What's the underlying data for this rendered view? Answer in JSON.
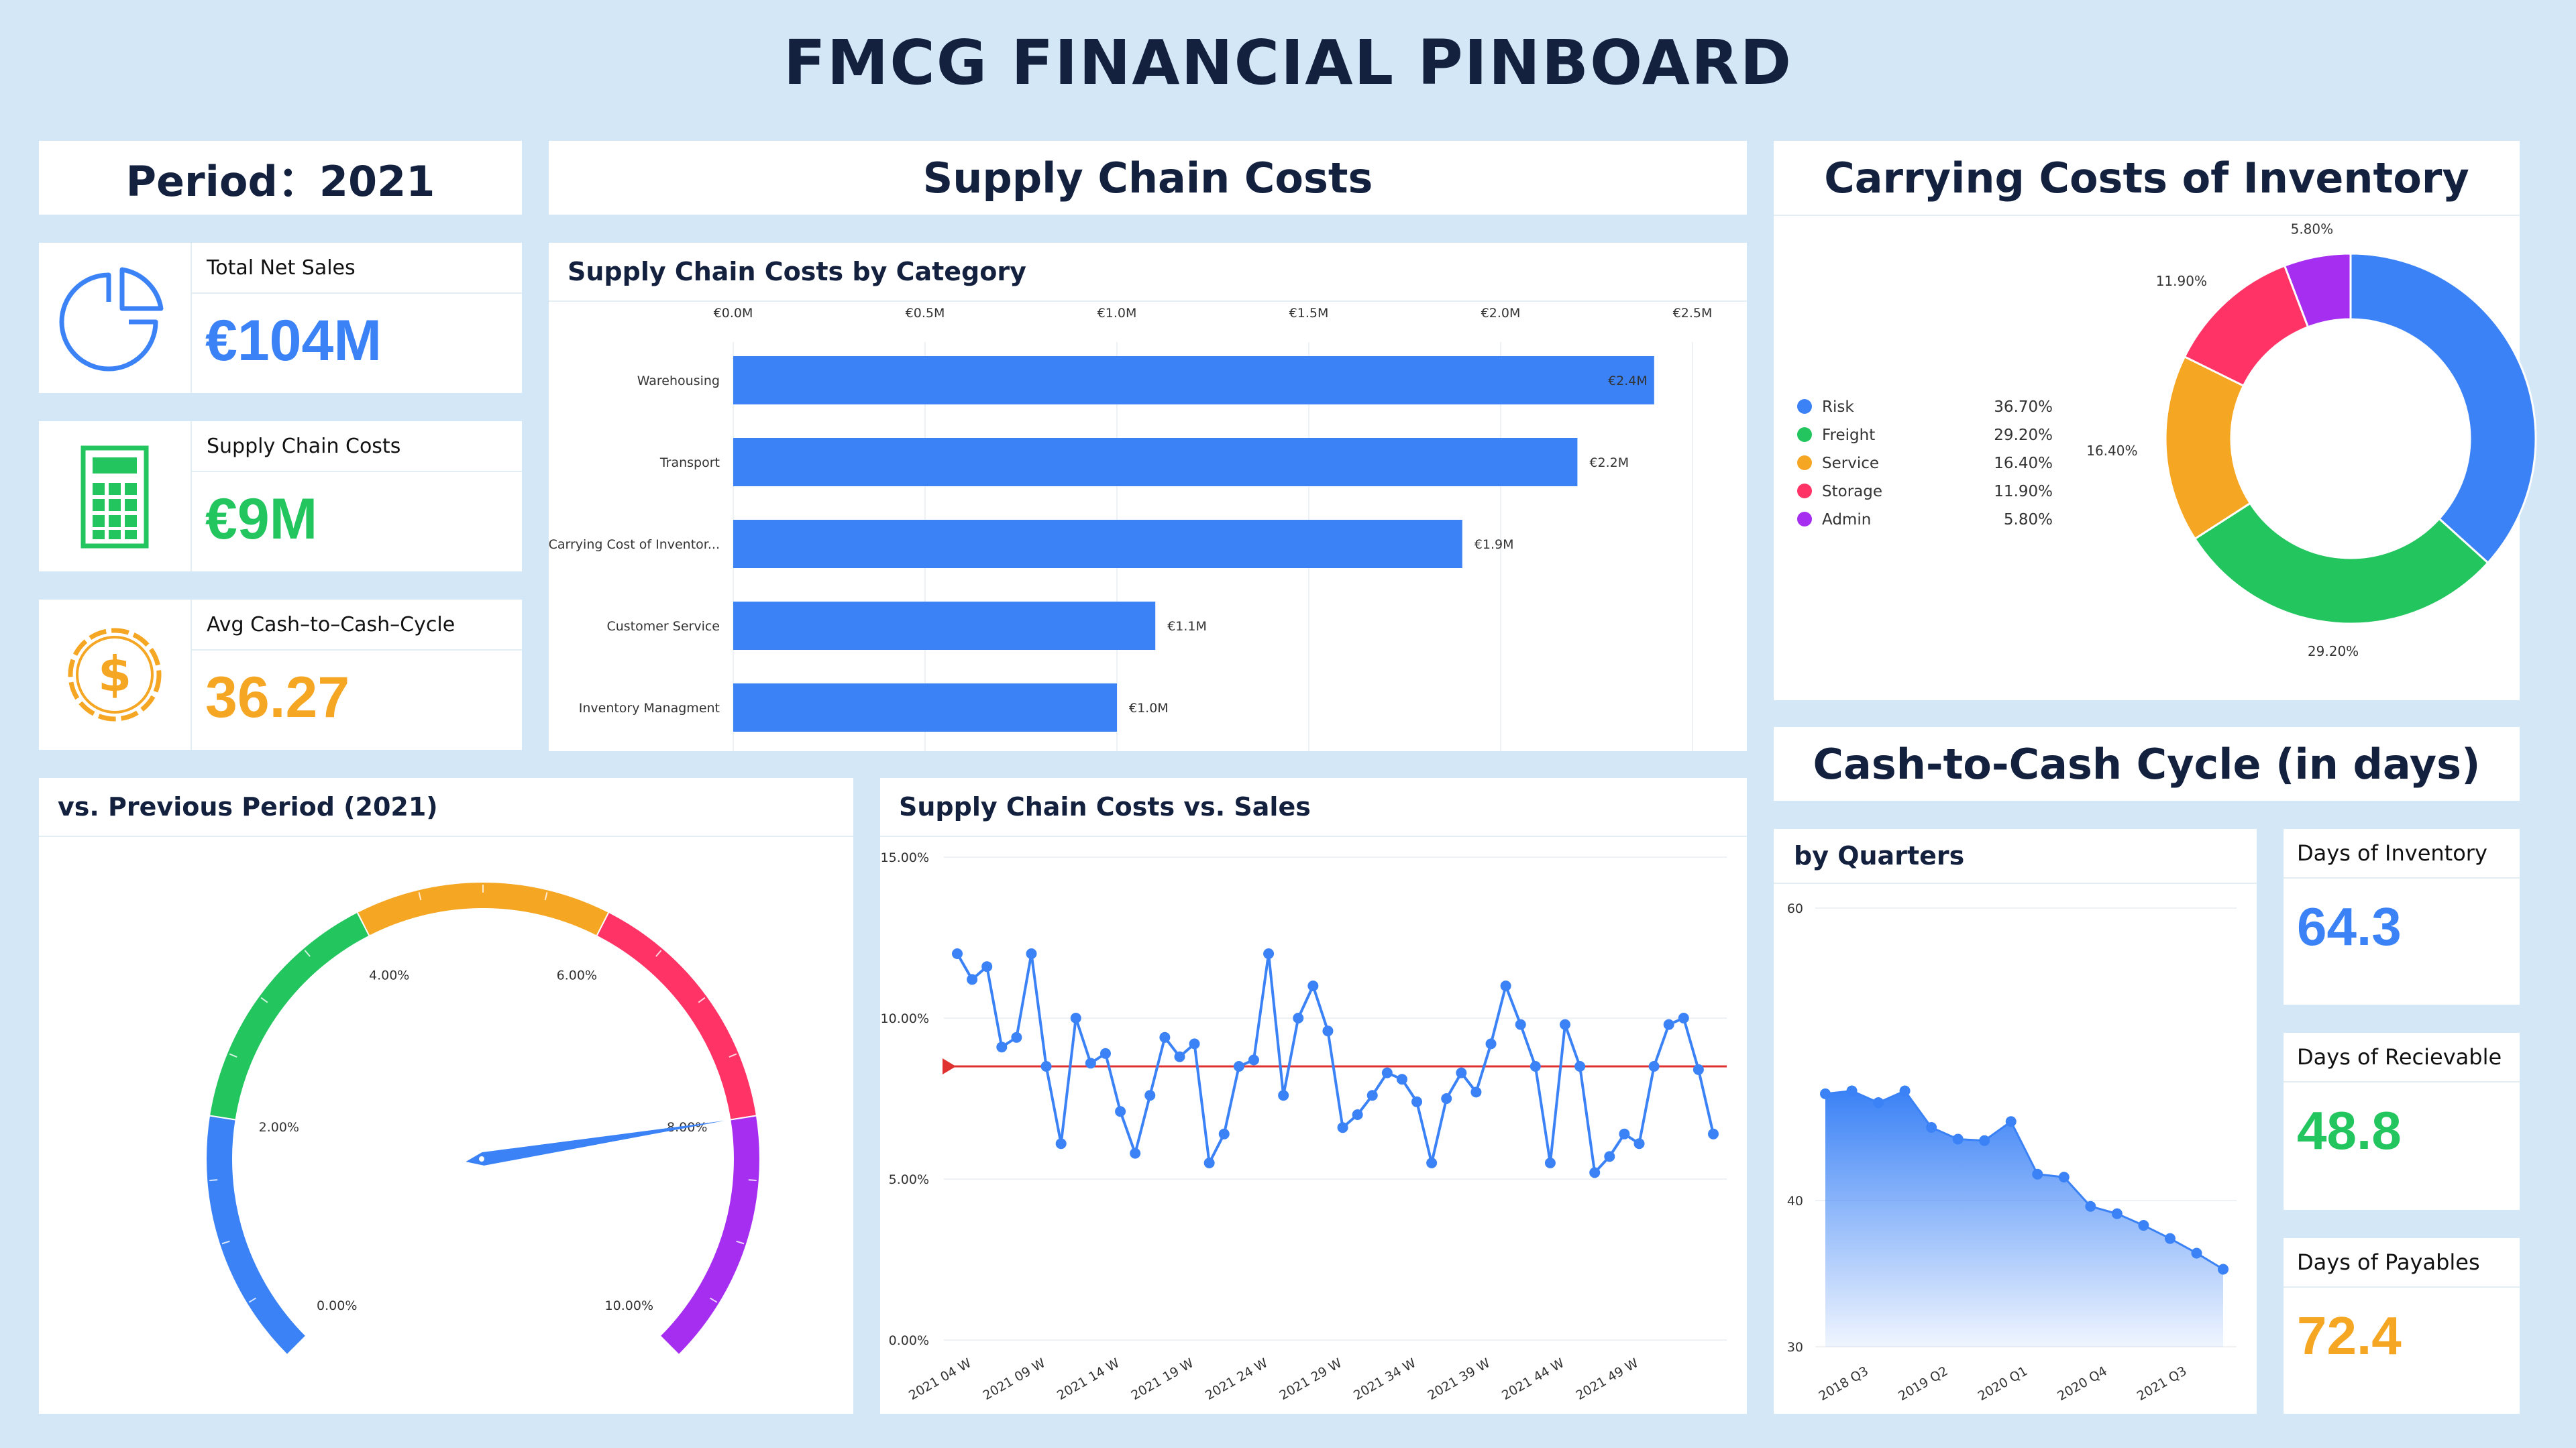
{
  "title": "FMCG FINANCIAL PINBOARD",
  "colors": {
    "blue": "#3b82f6",
    "green": "#22c55e",
    "orange": "#f5a623",
    "red": "#ff3366",
    "purple": "#a52ef0",
    "background": "#d4e7f6"
  },
  "period": {
    "label": "Period：2021"
  },
  "section_headers": {
    "supply_chain": "Supply Chain Costs",
    "carrying": "Carrying Costs of Inventory",
    "c2c": "Cash-to-Cash Cycle (in days)"
  },
  "kpis": [
    {
      "label": "Total Net Sales",
      "value": "€104M",
      "color": "#3b82f6",
      "icon": "pie-chart-icon"
    },
    {
      "label": "Supply Chain Costs",
      "value": "€9M",
      "color": "#22c55e",
      "icon": "calculator-icon"
    },
    {
      "label": "Avg Cash–to–Cash–Cycle",
      "value": "36.27",
      "color": "#f5a623",
      "icon": "dollar-badge-icon"
    }
  ],
  "panels": {
    "bar": "Supply Chain Costs by Category",
    "gauge": "vs. Previous Period (2021)",
    "line": "Supply Chain Costs vs. Sales",
    "area": "by Quarters"
  },
  "side_kpis": [
    {
      "label": "Days of Inventory",
      "value": "64.3",
      "color": "#3b82f6"
    },
    {
      "label": "Days of Recievable",
      "value": "48.8",
      "color": "#22c55e"
    },
    {
      "label": "Days of Payables",
      "value": "72.4",
      "color": "#f5a623"
    }
  ],
  "chart_data": [
    {
      "id": "bar",
      "type": "bar",
      "orientation": "horizontal",
      "categories": [
        "Warehousing",
        "Transport",
        "Carrying Cost of Inventor...",
        "Customer Service",
        "Inventory Managment"
      ],
      "values": [
        2.4,
        2.2,
        1.9,
        1.1,
        1.0
      ],
      "value_labels": [
        "€2.4M",
        "€2.2M",
        "€1.9M",
        "€1.1M",
        "€1.0M"
      ],
      "xticks": [
        "€0.0M",
        "€0.5M",
        "€1.0M",
        "€1.5M",
        "€2.0M",
        "€2.5M"
      ],
      "xlim": [
        0,
        2.5
      ],
      "axis_position": "top",
      "color": "#3b82f6"
    },
    {
      "id": "donut",
      "type": "pie",
      "style": "donut",
      "legend_position": "left",
      "slices": [
        {
          "name": "Risk",
          "value": 36.7,
          "label": "36.70%",
          "color": "#3b82f6"
        },
        {
          "name": "Freight",
          "value": 29.2,
          "label": "29.20%",
          "color": "#22c55e"
        },
        {
          "name": "Service",
          "value": 16.4,
          "label": "16.40%",
          "color": "#f5a623"
        },
        {
          "name": "Storage",
          "value": 11.9,
          "label": "11.90%",
          "color": "#ff3366"
        },
        {
          "name": "Admin",
          "value": 5.8,
          "label": "5.80%",
          "color": "#a52ef0"
        }
      ]
    },
    {
      "id": "gauge",
      "type": "gauge",
      "min": 0,
      "max": 10,
      "value": 8.0,
      "tick_labels": [
        "0.00%",
        "2.00%",
        "4.00%",
        "6.00%",
        "8.00%",
        "10.00%"
      ],
      "bands": [
        {
          "from": 0,
          "to": 2,
          "color": "#3b82f6"
        },
        {
          "from": 2,
          "to": 4,
          "color": "#22c55e"
        },
        {
          "from": 4,
          "to": 6,
          "color": "#f5a623"
        },
        {
          "from": 6,
          "to": 8,
          "color": "#ff3366"
        },
        {
          "from": 8,
          "to": 10,
          "color": "#a52ef0"
        }
      ]
    },
    {
      "id": "line",
      "type": "line",
      "ylim": [
        0,
        15
      ],
      "yticks": [
        "0.00%",
        "5.00%",
        "10.00%",
        "15.00%"
      ],
      "xtick_labels": [
        "2021 04 W",
        "2021 09 W",
        "2021 14 W",
        "2021 19 W",
        "2021 24 W",
        "2021 29 W",
        "2021 34 W",
        "2021 39 W",
        "2021 44 W",
        "2021 49 W"
      ],
      "reference_line": 8.5,
      "reference_color": "#e03131",
      "color": "#3b82f6",
      "values": [
        12.0,
        11.2,
        11.6,
        9.1,
        9.4,
        12.0,
        8.5,
        6.1,
        10.0,
        8.6,
        8.9,
        7.1,
        5.8,
        7.6,
        9.4,
        8.8,
        9.2,
        5.5,
        6.4,
        8.5,
        8.7,
        12.0,
        7.6,
        10.0,
        11.0,
        9.6,
        6.6,
        7.0,
        7.6,
        8.3,
        8.1,
        7.4,
        5.5,
        7.5,
        8.3,
        7.7,
        9.2,
        11.0,
        9.8,
        8.5,
        5.5,
        9.8,
        8.5,
        5.2,
        5.7,
        6.4,
        6.1,
        8.5,
        9.8,
        10.0,
        8.4,
        6.4
      ]
    },
    {
      "id": "area",
      "type": "area",
      "ylim": [
        30,
        60
      ],
      "yticks": [
        "30",
        "40",
        "60"
      ],
      "xtick_labels": [
        "2018 Q3",
        "2019 Q2",
        "2020 Q1",
        "2020 Q4",
        "2021 Q3"
      ],
      "color": "#3b82f6",
      "values": [
        47.3,
        47.5,
        46.7,
        47.5,
        45.0,
        44.2,
        44.1,
        45.4,
        41.8,
        41.6,
        39.6,
        39.1,
        38.3,
        37.4,
        36.4,
        35.3
      ]
    }
  ]
}
